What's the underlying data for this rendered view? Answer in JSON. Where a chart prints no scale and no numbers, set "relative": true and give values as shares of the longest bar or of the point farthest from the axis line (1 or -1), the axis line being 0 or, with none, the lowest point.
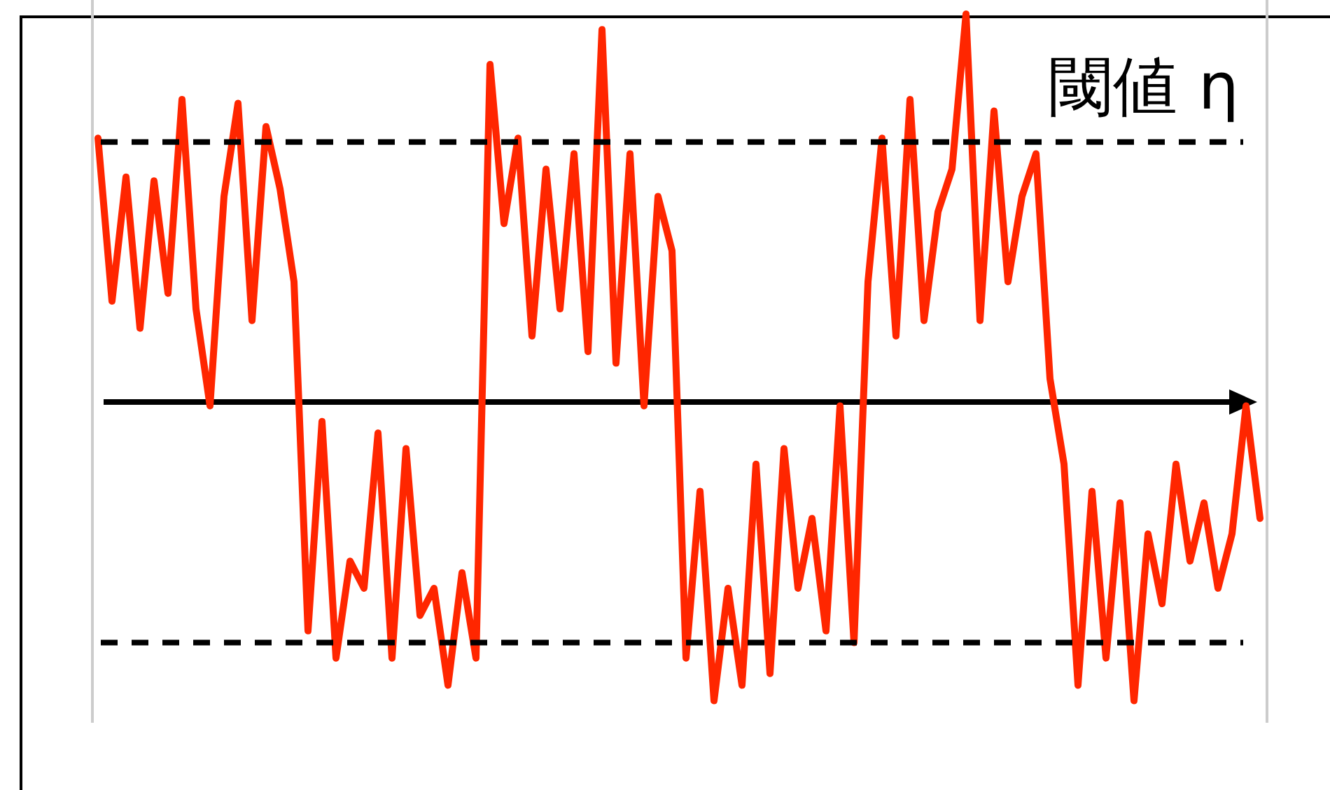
{
  "chart_data": {
    "type": "line",
    "relative": true,
    "categories": [
      null,
      null,
      null,
      null,
      null,
      null,
      null,
      null,
      null,
      null,
      null,
      null,
      null,
      null,
      null,
      null,
      null,
      null,
      null,
      null,
      null,
      null,
      null,
      null,
      null,
      null,
      null,
      null,
      null,
      null,
      null,
      null,
      null,
      null,
      null,
      null,
      null,
      null,
      null,
      null,
      null,
      null,
      null,
      null,
      null,
      null,
      null,
      null,
      null,
      null,
      null,
      null,
      null,
      null,
      null,
      null,
      null,
      null,
      null,
      null,
      null,
      null,
      null,
      null,
      null,
      null,
      null,
      null,
      null,
      null,
      null,
      null,
      null,
      null,
      null,
      null,
      null,
      null,
      null,
      null,
      null,
      null,
      null,
      null
    ],
    "series": [
      {
        "color": "#ff2600",
        "values": [
          0.68,
          0.26,
          0.58,
          0.19,
          0.57,
          0.28,
          0.78,
          0.24,
          -0.01,
          0.53,
          0.77,
          0.21,
          0.71,
          0.55,
          0.31,
          -0.59,
          -0.05,
          -0.66,
          -0.41,
          -0.48,
          -0.08,
          -0.66,
          -0.12,
          -0.55,
          -0.48,
          -0.73,
          -0.44,
          -0.66,
          0.87,
          0.46,
          0.68,
          0.17,
          0.6,
          0.24,
          0.64,
          0.13,
          0.96,
          0.1,
          0.64,
          -0.01,
          0.53,
          0.39,
          -0.66,
          -0.23,
          -0.77,
          -0.48,
          -0.73,
          -0.16,
          -0.7,
          -0.12,
          -0.48,
          -0.3,
          -0.59,
          -0.01,
          -0.62,
          0.31,
          0.68,
          0.17,
          0.78,
          0.21,
          0.49,
          0.6,
          1.0,
          0.21,
          0.75,
          0.31,
          0.53,
          0.64,
          0.06,
          -0.16,
          -0.73,
          -0.23,
          -0.66,
          -0.26,
          -0.77,
          -0.34,
          -0.52,
          -0.16,
          -0.41,
          -0.26,
          -0.48,
          -0.34,
          -0.01,
          -0.3
        ]
      }
    ],
    "ref_lines": [
      {
        "axis": "y",
        "value": 0.67,
        "label": "閾値 η",
        "color": "#000000",
        "line_style": "dashed"
      },
      {
        "axis": "y",
        "value": -0.62,
        "color": "#000000",
        "line_style": "dashed"
      }
    ],
    "line_style": "solid",
    "marker": "none",
    "grid": false
  }
}
